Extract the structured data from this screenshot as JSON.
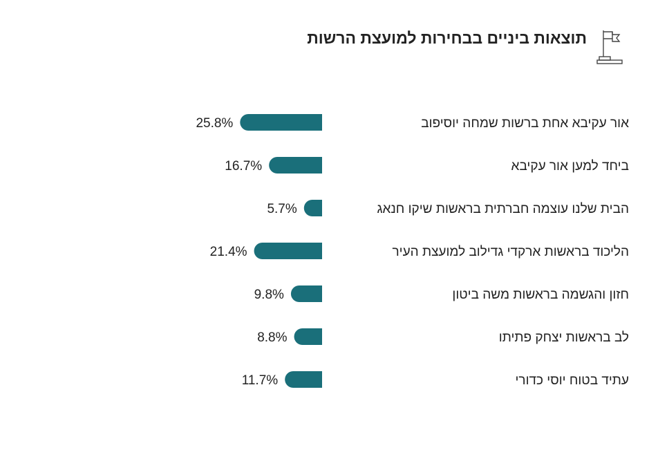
{
  "title": "תוצאות ביניים בבחירות למועצת הרשות",
  "icon": "flag-on-podium-icon",
  "colors": {
    "bar": "#1a6f7a",
    "text": "#222222"
  },
  "chart_data": {
    "type": "bar",
    "orientation": "horizontal",
    "direction": "rtl",
    "title": "תוצאות ביניים בבחירות למועצת הרשות",
    "unit": "%",
    "categories": [
      "אור עקיבא אחת ברשות שמחה יוסיפוב",
      "ביחד למען אור עקיבא",
      "הבית שלנו עוצמה חברתית בראשות שיקו חנאג",
      "הליכוד בראשות ארקדי גדילוב למועצת העיר",
      "חזון והגשמה בראשות משה ביטון",
      "לב בראשות יצחק פתיתו",
      "עתיד בטוח יוסי כדורי"
    ],
    "values": [
      25.8,
      16.7,
      5.7,
      21.4,
      9.8,
      8.8,
      11.7
    ],
    "value_labels": [
      "25.8%",
      "16.7%",
      "5.7%",
      "21.4%",
      "9.8%",
      "8.8%",
      "11.7%"
    ],
    "grid": false,
    "legend": "none"
  }
}
